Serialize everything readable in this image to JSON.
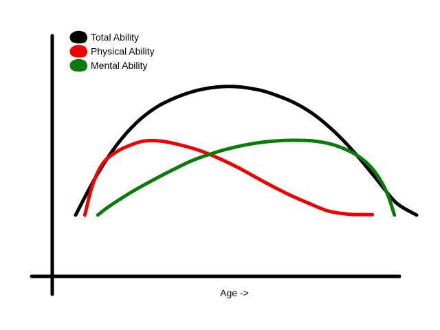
{
  "chart_data": {
    "type": "line",
    "title": "",
    "xlabel": "Age ->",
    "ylabel": "",
    "x_ticks": "none",
    "y_ticks": "none",
    "grid": false,
    "legend_position": "top-left",
    "xlim": [
      0,
      100
    ],
    "ylim": [
      0,
      100
    ],
    "series": [
      {
        "name": "Total Ability",
        "color": "#000000",
        "x": [
          0,
          6,
          12,
          18,
          24,
          30,
          36,
          42,
          48,
          54,
          58,
          64,
          70,
          76,
          82,
          88,
          94,
          100
        ],
        "y": [
          18.5,
          42,
          61,
          75,
          84.5,
          90.5,
          94.5,
          96.5,
          96.5,
          94.5,
          92,
          87,
          79.5,
          69,
          56,
          41,
          26,
          18.5
        ]
      },
      {
        "name": "Physical Ability",
        "color": "#ee0000",
        "x": [
          2.7,
          5,
          8,
          12,
          16,
          20,
          25,
          30,
          36,
          42,
          48,
          55,
          62,
          68,
          74,
          80,
          84,
          87
        ],
        "y": [
          18.5,
          37,
          50,
          57,
          61,
          63.5,
          63.5,
          61.5,
          58,
          53,
          47,
          39,
          31.5,
          26,
          21,
          19,
          18.8,
          18.7
        ]
      },
      {
        "name": "Mental Ability",
        "color": "#0a7a0a",
        "x": [
          6.5,
          10,
          16,
          22,
          28,
          34,
          40,
          46,
          52,
          58,
          64,
          70,
          76,
          82,
          86,
          89,
          91.5,
          93.5
        ],
        "y": [
          18.5,
          24,
          32,
          39,
          45.5,
          51.5,
          56,
          59.5,
          62,
          63.5,
          64,
          63.5,
          61,
          55.5,
          49,
          41,
          31,
          18.5
        ]
      }
    ]
  }
}
